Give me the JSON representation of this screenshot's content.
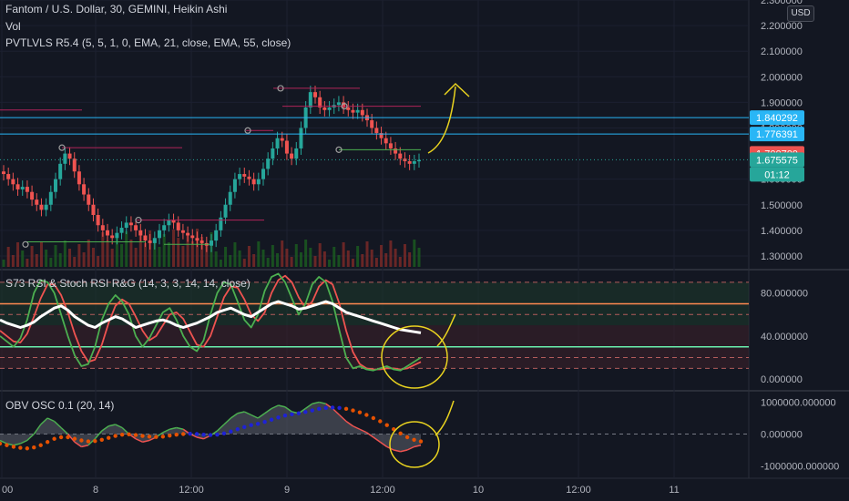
{
  "header": {
    "main_title": "Fantom / U.S. Dollar, 30, GEMINI, Heikin Ashi",
    "vol_label": "Vol",
    "indicator_label": "PVTLVLS R5.4 (5, 5, 1, 0, EMA, 21, close, EMA, 55, close)",
    "currency_button": "USD"
  },
  "colors": {
    "background": "#131722",
    "up": "#26a69a",
    "down": "#ef5350",
    "cyan_line": "#29b6f6",
    "red_tag": "#ef5350",
    "green_tag": "#26a69a",
    "rsi_green": "#4caf50",
    "rsi_red": "#ef5350",
    "rsi_white": "#ffffff",
    "obv_blue": "#1e22d6",
    "obv_orange": "#e65100",
    "annotation": "#e8d21f"
  },
  "chart_data": [
    {
      "type": "candlestick",
      "pane": "price",
      "title": "Fantom / U.S. Dollar, 30, GEMINI, Heikin Ashi",
      "y_ticks": [
        "2.300000",
        "2.200000",
        "2.100000",
        "2.000000",
        "1.900000",
        "1.800000",
        "1.600000",
        "1.500000",
        "1.400000",
        "1.300000"
      ],
      "ylim": [
        1.25,
        2.3
      ],
      "x_ticks": [
        "00",
        "8",
        "12:00",
        "9",
        "12:00",
        "10",
        "12:00",
        "11"
      ],
      "price_tags": [
        {
          "label": "1.840292",
          "value": 1.840292,
          "kind": "cyan"
        },
        {
          "label": "1.776391",
          "value": 1.776391,
          "kind": "cyan"
        },
        {
          "label": "1.700700",
          "value": 1.7007,
          "kind": "red"
        },
        {
          "label": "1.675575",
          "value": 1.675575,
          "kind": "green"
        },
        {
          "label": "01:12",
          "value": null,
          "kind": "green_sub"
        }
      ],
      "horizontal_levels": [
        1.840292,
        1.776391
      ],
      "pivot_highs": [
        1.955,
        1.885,
        1.775,
        1.723,
        1.44
      ],
      "pivot_lows": [
        1.715,
        1.355,
        1.345
      ],
      "close_path": [
        1.62,
        1.6,
        1.58,
        1.56,
        1.57,
        1.55,
        1.52,
        1.5,
        1.48,
        1.5,
        1.55,
        1.6,
        1.66,
        1.7,
        1.68,
        1.63,
        1.58,
        1.54,
        1.5,
        1.46,
        1.42,
        1.4,
        1.38,
        1.37,
        1.39,
        1.41,
        1.43,
        1.42,
        1.4,
        1.38,
        1.36,
        1.35,
        1.37,
        1.4,
        1.42,
        1.44,
        1.43,
        1.4,
        1.39,
        1.38,
        1.37,
        1.36,
        1.35,
        1.34,
        1.36,
        1.4,
        1.45,
        1.5,
        1.55,
        1.6,
        1.62,
        1.61,
        1.6,
        1.58,
        1.6,
        1.64,
        1.68,
        1.72,
        1.76,
        1.75,
        1.7,
        1.68,
        1.72,
        1.8,
        1.88,
        1.94,
        1.92,
        1.88,
        1.87,
        1.88,
        1.89,
        1.9,
        1.88,
        1.87,
        1.86,
        1.87,
        1.85,
        1.83,
        1.8,
        1.78,
        1.76,
        1.74,
        1.72,
        1.7,
        1.68,
        1.67,
        1.66,
        1.67,
        1.675
      ]
    },
    {
      "type": "line",
      "pane": "rsi",
      "title": "S73 RSI & Stoch RSI R&G (14, 3, 3, 14, 14, close)",
      "y_ticks": [
        "80.000000",
        "40.000000",
        "0.000000"
      ],
      "ylim": [
        -10,
        100
      ],
      "bands": {
        "upper": 70,
        "lower": 30
      },
      "series": [
        {
          "kind": "rsi",
          "values": [
            55,
            52,
            50,
            48,
            50,
            53,
            58,
            62,
            66,
            68,
            64,
            58,
            54,
            50,
            48,
            52,
            55,
            58,
            56,
            52,
            48,
            50,
            52,
            54,
            55,
            53,
            50,
            48,
            50,
            52,
            55,
            58,
            62,
            64,
            66,
            63,
            60,
            58,
            62,
            66,
            70,
            72,
            70,
            68,
            65,
            66,
            68,
            70,
            72,
            70,
            66,
            62,
            60,
            58,
            56,
            54,
            52,
            50,
            48,
            46,
            45,
            44,
            43
          ]
        },
        {
          "kind": "stoch_k",
          "values": [
            40,
            35,
            30,
            38,
            55,
            80,
            92,
            90,
            80,
            60,
            40,
            22,
            12,
            14,
            30,
            55,
            70,
            78,
            72,
            60,
            40,
            30,
            38,
            50,
            62,
            66,
            55,
            40,
            30,
            26,
            36,
            60,
            80,
            90,
            88,
            72,
            55,
            48,
            60,
            82,
            95,
            98,
            90,
            75,
            60,
            70,
            88,
            95,
            90,
            72,
            45,
            20,
            10,
            12,
            9,
            8,
            10,
            12,
            9,
            8,
            12,
            16,
            20
          ]
        },
        {
          "kind": "stoch_d",
          "values": [
            45,
            40,
            35,
            34,
            42,
            58,
            75,
            88,
            88,
            78,
            62,
            42,
            26,
            16,
            18,
            32,
            52,
            68,
            74,
            70,
            58,
            45,
            36,
            40,
            50,
            60,
            62,
            56,
            44,
            32,
            30,
            40,
            58,
            76,
            86,
            85,
            74,
            60,
            54,
            62,
            80,
            92,
            96,
            90,
            76,
            66,
            72,
            86,
            92,
            88,
            70,
            45,
            25,
            14,
            10,
            9,
            9,
            10,
            10,
            9,
            10,
            13,
            16
          ]
        }
      ]
    },
    {
      "type": "area",
      "pane": "obv",
      "title": "OBV OSC 0.1 (20, 14)",
      "y_ticks": [
        "1000000.000000",
        "0.000000",
        "-1000000.000000"
      ],
      "ylim": [
        -1300000,
        1300000
      ],
      "series": [
        {
          "kind": "obv_osc",
          "values": [
            -200000,
            -300000,
            -350000,
            -300000,
            -200000,
            0,
            300000,
            500000,
            400000,
            200000,
            0,
            -250000,
            -400000,
            -350000,
            -150000,
            100000,
            250000,
            300000,
            200000,
            0,
            -150000,
            -250000,
            -200000,
            -100000,
            50000,
            150000,
            200000,
            150000,
            0,
            -100000,
            -150000,
            -50000,
            100000,
            300000,
            500000,
            650000,
            700000,
            600000,
            500000,
            650000,
            800000,
            900000,
            850000,
            700000,
            650000,
            800000,
            950000,
            1000000,
            950000,
            800000,
            600000,
            400000,
            250000,
            150000,
            50000,
            -100000,
            -250000,
            -400000,
            -500000,
            -550000,
            -500000,
            -400000,
            -350000
          ]
        },
        {
          "kind": "signal",
          "values": [
            -300000,
            -350000,
            -400000,
            -430000,
            -450000,
            -420000,
            -350000,
            -250000,
            -150000,
            -100000,
            -100000,
            -150000,
            -200000,
            -230000,
            -220000,
            -180000,
            -120000,
            -60000,
            -20000,
            -10000,
            -30000,
            -60000,
            -80000,
            -90000,
            -80000,
            -50000,
            -20000,
            0,
            10000,
            0,
            -20000,
            -30000,
            -20000,
            20000,
            80000,
            150000,
            220000,
            280000,
            320000,
            380000,
            450000,
            520000,
            580000,
            620000,
            650000,
            690000,
            740000,
            790000,
            820000,
            830000,
            820000,
            790000,
            740000,
            680000,
            600000,
            500000,
            400000,
            280000,
            150000,
            20000,
            -100000,
            -180000,
            -230000
          ]
        }
      ]
    }
  ]
}
